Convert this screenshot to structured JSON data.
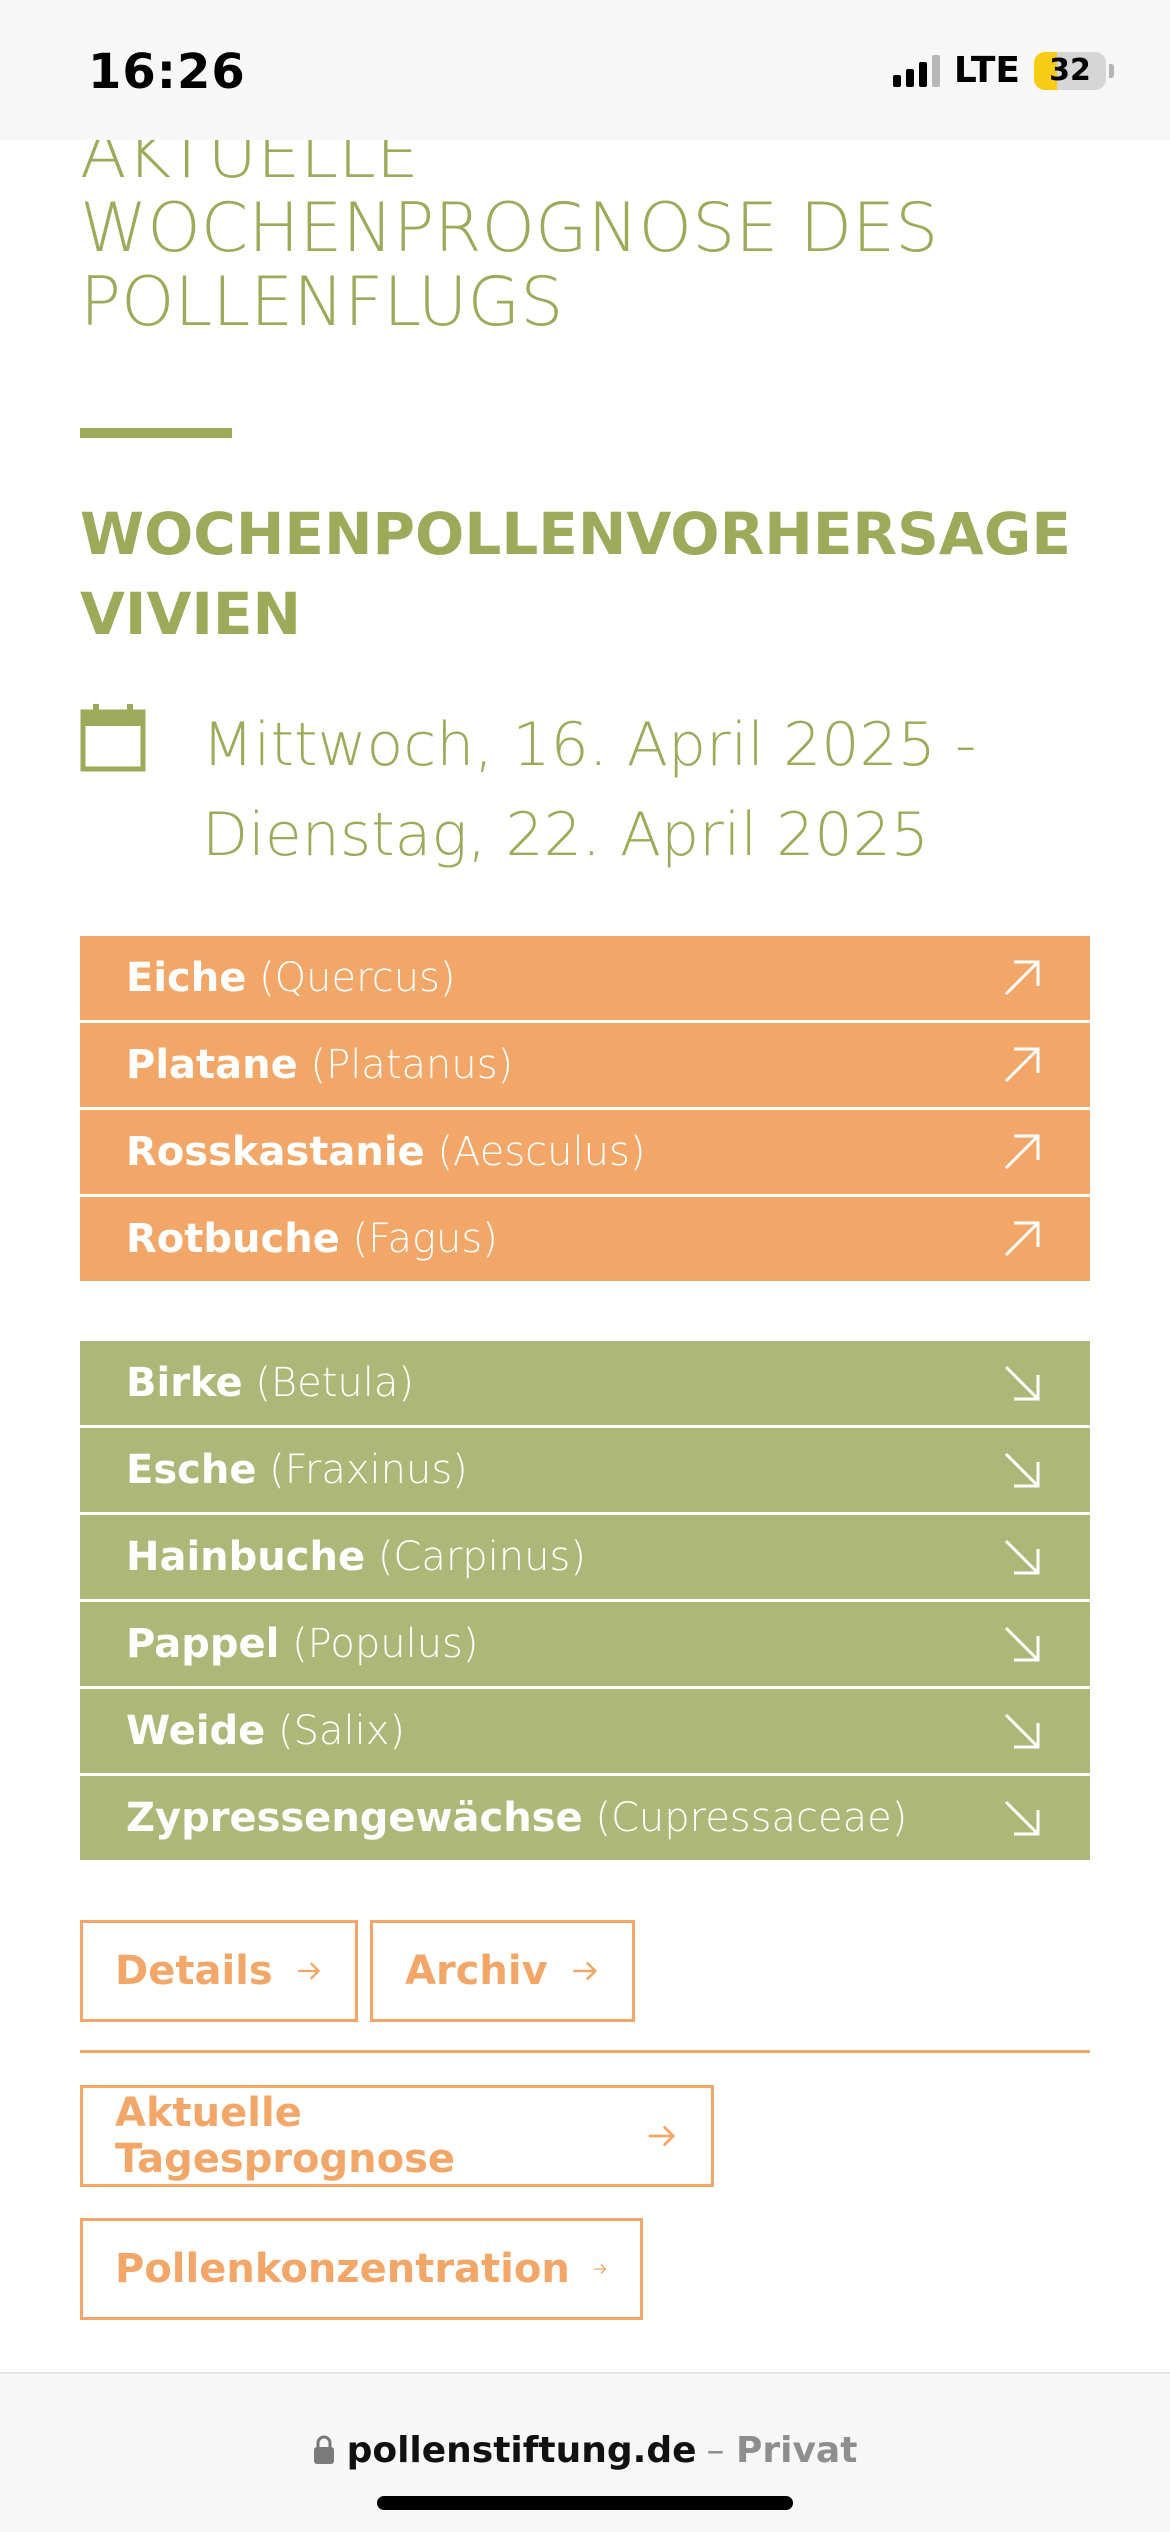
{
  "status_bar": {
    "time": "16:26",
    "network": "LTE",
    "battery": "32"
  },
  "page": {
    "title": "AKTUELLE WOCHENPROGNOSE DES POLLENFLUGS",
    "subtitle": "WOCHENPOLLENVORHERSAGE VIVIEN",
    "date_range": "Mittwoch, 16. April 2025 - Dienstag, 22. April 2025"
  },
  "rising": [
    {
      "name": "Eiche",
      "latin": "(Quercus)",
      "trend": "arrow-up-right-icon"
    },
    {
      "name": "Platane",
      "latin": "(Platanus)",
      "trend": "arrow-up-right-icon"
    },
    {
      "name": "Rosskastanie",
      "latin": "(Aesculus)",
      "trend": "arrow-up-right-icon"
    },
    {
      "name": "Rotbuche",
      "latin": "(Fagus)",
      "trend": "arrow-up-right-icon"
    }
  ],
  "falling": [
    {
      "name": "Birke",
      "latin": "(Betula)",
      "trend": "arrow-down-right-icon"
    },
    {
      "name": "Esche",
      "latin": "(Fraxinus)",
      "trend": "arrow-down-right-icon"
    },
    {
      "name": "Hainbuche",
      "latin": "(Carpinus)",
      "trend": "arrow-down-right-icon"
    },
    {
      "name": "Pappel",
      "latin": "(Populus)",
      "trend": "arrow-down-right-icon"
    },
    {
      "name": "Weide",
      "latin": "(Salix)",
      "trend": "arrow-down-right-icon"
    },
    {
      "name": "Zypressengewächse",
      "latin": "(Cupressaceae)",
      "trend": "arrow-down-right-icon"
    }
  ],
  "buttons": {
    "details": "Details",
    "archiv": "Archiv",
    "tagesprognose": "Aktuelle Tagesprognose",
    "pollenkonzentration": "Pollenkonzentration"
  },
  "browser": {
    "domain": "pollenstiftung.de",
    "separator": "–",
    "mode": "Privat"
  },
  "colors": {
    "olive": "#9daa5a",
    "orange": "#f2a768",
    "green_row": "#adb878"
  }
}
